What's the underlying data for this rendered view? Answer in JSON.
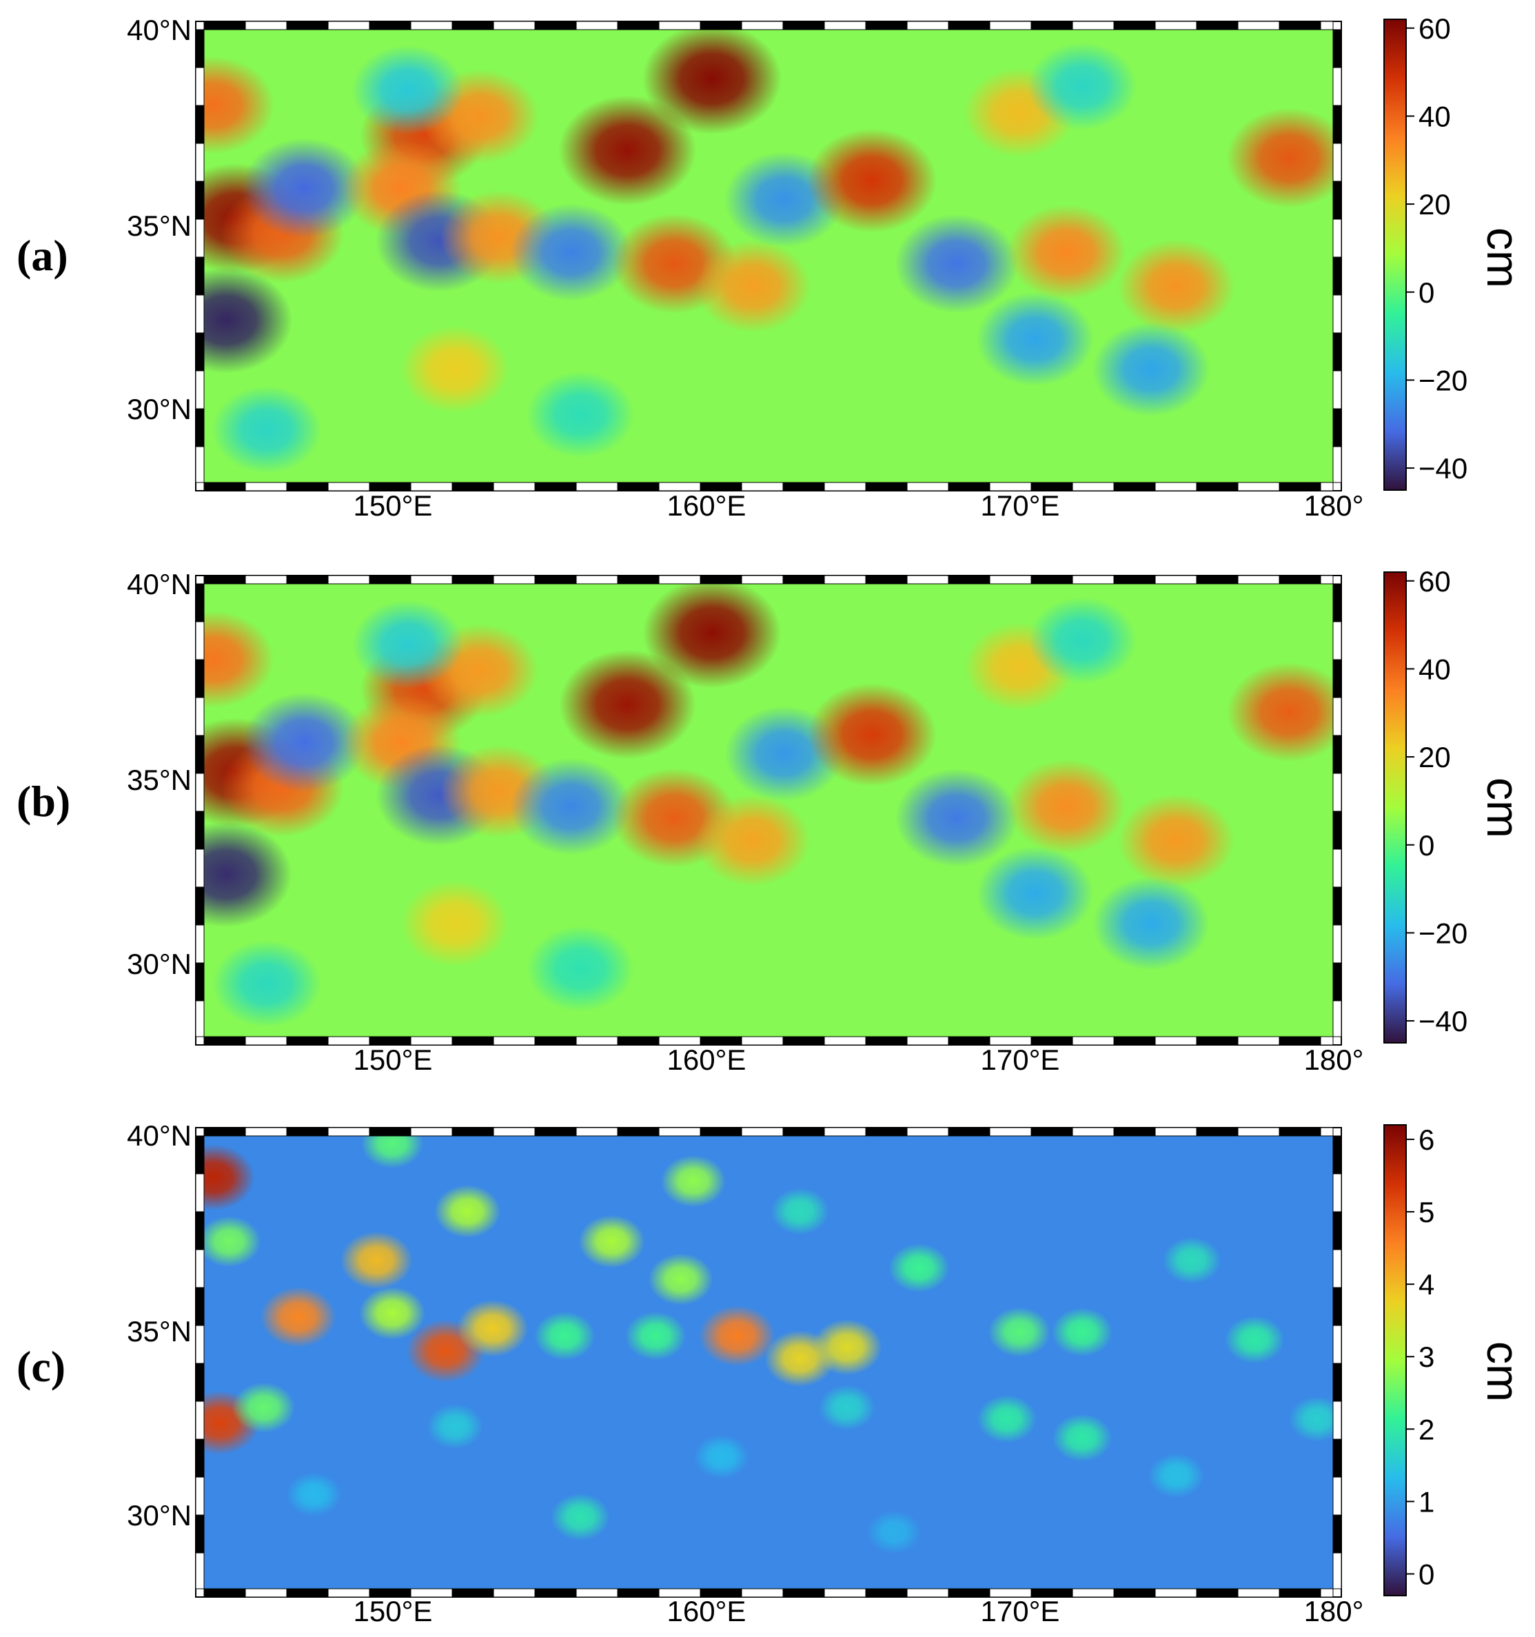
{
  "chart_data": [
    {
      "type": "heatmap",
      "panel_label": "(a)",
      "x_ticks": [
        "150°E",
        "160°E",
        "170°E",
        "180°"
      ],
      "y_ticks": [
        "40°N",
        "35°N",
        "30°N"
      ],
      "xlim": [
        144,
        180
      ],
      "ylim": [
        28,
        40
      ],
      "colorbar": {
        "label": "cm",
        "ticks": [
          "60",
          "40",
          "20",
          "0",
          "−20",
          "−40"
        ],
        "tick_values": [
          60,
          40,
          20,
          0,
          -20,
          -40
        ],
        "range": [
          -45,
          62
        ]
      },
      "features": [
        {
          "lon": 145.0,
          "lat": 35.0,
          "value": 58
        },
        {
          "lon": 146.5,
          "lat": 34.6,
          "value": 40
        },
        {
          "lon": 144.3,
          "lat": 38.0,
          "value": 38
        },
        {
          "lon": 147.2,
          "lat": 35.8,
          "value": -32
        },
        {
          "lon": 144.7,
          "lat": 32.3,
          "value": -42
        },
        {
          "lon": 151.0,
          "lat": 37.2,
          "value": 45
        },
        {
          "lon": 150.3,
          "lat": 35.8,
          "value": 35
        },
        {
          "lon": 152.8,
          "lat": 37.7,
          "value": 32
        },
        {
          "lon": 151.5,
          "lat": 34.4,
          "value": -35
        },
        {
          "lon": 153.4,
          "lat": 34.5,
          "value": 32
        },
        {
          "lon": 155.7,
          "lat": 34.1,
          "value": -28
        },
        {
          "lon": 157.5,
          "lat": 36.8,
          "value": 58
        },
        {
          "lon": 160.2,
          "lat": 38.7,
          "value": 60
        },
        {
          "lon": 159.0,
          "lat": 33.8,
          "value": 42
        },
        {
          "lon": 161.5,
          "lat": 33.2,
          "value": 30
        },
        {
          "lon": 162.5,
          "lat": 35.5,
          "value": -25
        },
        {
          "lon": 165.3,
          "lat": 36.0,
          "value": 48
        },
        {
          "lon": 168.0,
          "lat": 33.8,
          "value": -30
        },
        {
          "lon": 171.5,
          "lat": 34.1,
          "value": 34
        },
        {
          "lon": 175.0,
          "lat": 33.2,
          "value": 32
        },
        {
          "lon": 170.5,
          "lat": 31.8,
          "value": -22
        },
        {
          "lon": 174.2,
          "lat": 31.0,
          "value": -22
        },
        {
          "lon": 178.6,
          "lat": 36.6,
          "value": 42
        },
        {
          "lon": 150.5,
          "lat": 38.4,
          "value": -15
        },
        {
          "lon": 170.0,
          "lat": 37.8,
          "value": 25
        },
        {
          "lon": 172.0,
          "lat": 38.5,
          "value": -12
        },
        {
          "lon": 152.0,
          "lat": 31.0,
          "value": 22
        },
        {
          "lon": 146.0,
          "lat": 29.4,
          "value": -12
        },
        {
          "lon": 156.0,
          "lat": 29.8,
          "value": -10
        }
      ]
    },
    {
      "type": "heatmap",
      "panel_label": "(b)",
      "x_ticks": [
        "150°E",
        "160°E",
        "170°E",
        "180°"
      ],
      "y_ticks": [
        "40°N",
        "35°N",
        "30°N"
      ],
      "xlim": [
        144,
        180
      ],
      "ylim": [
        28,
        40
      ],
      "colorbar": {
        "label": "cm",
        "ticks": [
          "60",
          "40",
          "20",
          "0",
          "−20",
          "−40"
        ],
        "tick_values": [
          60,
          40,
          20,
          0,
          -20,
          -40
        ],
        "range": [
          -45,
          62
        ]
      },
      "features": [
        {
          "lon": 145.0,
          "lat": 35.0,
          "value": 57
        },
        {
          "lon": 146.5,
          "lat": 34.6,
          "value": 39
        },
        {
          "lon": 144.3,
          "lat": 38.0,
          "value": 37
        },
        {
          "lon": 147.2,
          "lat": 35.8,
          "value": -31
        },
        {
          "lon": 144.7,
          "lat": 32.3,
          "value": -41
        },
        {
          "lon": 151.0,
          "lat": 37.2,
          "value": 44
        },
        {
          "lon": 150.3,
          "lat": 35.8,
          "value": 34
        },
        {
          "lon": 152.8,
          "lat": 37.7,
          "value": 31
        },
        {
          "lon": 151.5,
          "lat": 34.4,
          "value": -34
        },
        {
          "lon": 153.4,
          "lat": 34.5,
          "value": 31
        },
        {
          "lon": 155.7,
          "lat": 34.1,
          "value": -27
        },
        {
          "lon": 157.5,
          "lat": 36.8,
          "value": 57
        },
        {
          "lon": 160.2,
          "lat": 38.7,
          "value": 59
        },
        {
          "lon": 159.0,
          "lat": 33.8,
          "value": 41
        },
        {
          "lon": 161.5,
          "lat": 33.2,
          "value": 29
        },
        {
          "lon": 162.5,
          "lat": 35.5,
          "value": -24
        },
        {
          "lon": 165.3,
          "lat": 36.0,
          "value": 47
        },
        {
          "lon": 168.0,
          "lat": 33.8,
          "value": -29
        },
        {
          "lon": 171.5,
          "lat": 34.1,
          "value": 33
        },
        {
          "lon": 175.0,
          "lat": 33.2,
          "value": 31
        },
        {
          "lon": 170.5,
          "lat": 31.8,
          "value": -21
        },
        {
          "lon": 174.2,
          "lat": 31.0,
          "value": -21
        },
        {
          "lon": 178.6,
          "lat": 36.6,
          "value": 41
        },
        {
          "lon": 150.5,
          "lat": 38.4,
          "value": -14
        },
        {
          "lon": 170.0,
          "lat": 37.8,
          "value": 24
        },
        {
          "lon": 172.0,
          "lat": 38.5,
          "value": -11
        },
        {
          "lon": 152.0,
          "lat": 31.0,
          "value": 21
        },
        {
          "lon": 146.0,
          "lat": 29.4,
          "value": -11
        },
        {
          "lon": 156.0,
          "lat": 29.8,
          "value": -9
        }
      ]
    },
    {
      "type": "heatmap",
      "panel_label": "(c)",
      "x_ticks": [
        "150°E",
        "160°E",
        "170°E",
        "180°"
      ],
      "y_ticks": [
        "40°N",
        "35°N",
        "30°N"
      ],
      "xlim": [
        144,
        180
      ],
      "ylim": [
        28,
        40
      ],
      "colorbar": {
        "label": "cm",
        "ticks": [
          "6",
          "5",
          "4",
          "3",
          "2",
          "1",
          "0"
        ],
        "tick_values": [
          6,
          5,
          4,
          3,
          2,
          1,
          0
        ],
        "range": [
          -0.3,
          6.2
        ]
      },
      "features": [
        {
          "lon": 144.3,
          "lat": 38.9,
          "value": 5.6
        },
        {
          "lon": 144.5,
          "lat": 32.4,
          "value": 5.2
        },
        {
          "lon": 151.7,
          "lat": 34.3,
          "value": 5.0
        },
        {
          "lon": 147.0,
          "lat": 35.2,
          "value": 4.5
        },
        {
          "lon": 149.5,
          "lat": 36.7,
          "value": 4.0
        },
        {
          "lon": 153.2,
          "lat": 34.9,
          "value": 3.8
        },
        {
          "lon": 161.0,
          "lat": 34.7,
          "value": 4.6
        },
        {
          "lon": 163.0,
          "lat": 34.1,
          "value": 3.7
        },
        {
          "lon": 164.5,
          "lat": 34.4,
          "value": 3.6
        },
        {
          "lon": 157.0,
          "lat": 37.2,
          "value": 3.0
        },
        {
          "lon": 159.6,
          "lat": 38.8,
          "value": 2.8
        },
        {
          "lon": 150.0,
          "lat": 35.3,
          "value": 3.0
        },
        {
          "lon": 152.4,
          "lat": 38.0,
          "value": 3.0
        },
        {
          "lon": 159.2,
          "lat": 36.2,
          "value": 2.8
        },
        {
          "lon": 155.5,
          "lat": 34.7,
          "value": 2.2
        },
        {
          "lon": 158.4,
          "lat": 34.7,
          "value": 2.2
        },
        {
          "lon": 145.9,
          "lat": 32.8,
          "value": 2.5
        },
        {
          "lon": 144.8,
          "lat": 37.2,
          "value": 2.6
        },
        {
          "lon": 170.0,
          "lat": 34.8,
          "value": 2.4
        },
        {
          "lon": 172.0,
          "lat": 34.8,
          "value": 2.2
        },
        {
          "lon": 177.5,
          "lat": 34.6,
          "value": 2.0
        },
        {
          "lon": 169.6,
          "lat": 32.5,
          "value": 2.0
        },
        {
          "lon": 172.0,
          "lat": 32.0,
          "value": 2.0
        },
        {
          "lon": 166.8,
          "lat": 36.5,
          "value": 2.2
        },
        {
          "lon": 175.5,
          "lat": 36.7,
          "value": 1.8
        },
        {
          "lon": 156.0,
          "lat": 29.9,
          "value": 1.9
        },
        {
          "lon": 163.0,
          "lat": 38.0,
          "value": 1.8
        },
        {
          "lon": 152.0,
          "lat": 32.3,
          "value": 1.5
        },
        {
          "lon": 164.5,
          "lat": 32.8,
          "value": 1.6
        },
        {
          "lon": 160.5,
          "lat": 31.5,
          "value": 1.3
        },
        {
          "lon": 175.0,
          "lat": 31.0,
          "value": 1.4
        },
        {
          "lon": 147.5,
          "lat": 30.5,
          "value": 1.3
        },
        {
          "lon": 166.0,
          "lat": 29.5,
          "value": 1.2
        },
        {
          "lon": 179.5,
          "lat": 32.5,
          "value": 1.6
        },
        {
          "lon": 150.0,
          "lat": 39.8,
          "value": 2.4
        }
      ]
    }
  ]
}
